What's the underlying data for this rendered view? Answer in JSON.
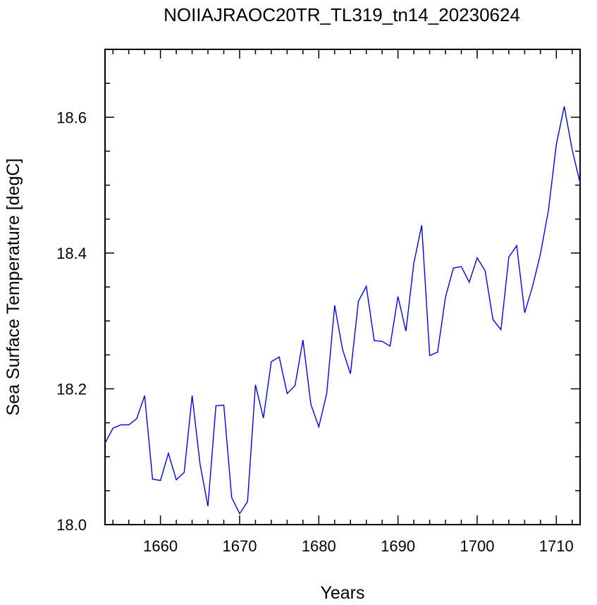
{
  "chart_data": {
    "type": "line",
    "title": "NOIIAJRAOC20TR_TL319_tn14_20230624",
    "xlabel": "Years",
    "ylabel": "Sea Surface Temperature [degC]",
    "xlim": [
      1653,
      1713
    ],
    "ylim": [
      18.0,
      18.7
    ],
    "x_ticks": [
      1660,
      1670,
      1680,
      1690,
      1700,
      1710
    ],
    "y_ticks": [
      18.0,
      18.2,
      18.4,
      18.6
    ],
    "x_tick_labels": [
      "1660",
      "1670",
      "1680",
      "1690",
      "1700",
      "1710"
    ],
    "y_tick_labels": [
      "18.0",
      "18.2",
      "18.4",
      "18.6"
    ],
    "grid": false,
    "line_color": "#0000ff",
    "series": [
      {
        "x": [
          1653,
          1654,
          1655,
          1656,
          1657,
          1658,
          1659,
          1660,
          1661,
          1662,
          1663,
          1664,
          1665,
          1666,
          1667,
          1668,
          1669,
          1670,
          1671,
          1672,
          1673,
          1674,
          1675,
          1676,
          1677,
          1678,
          1679,
          1680,
          1681,
          1682,
          1683,
          1684,
          1685,
          1686,
          1687,
          1688,
          1689,
          1690,
          1691,
          1692,
          1693,
          1694,
          1695,
          1696,
          1697,
          1698,
          1699,
          1700,
          1701,
          1702,
          1703,
          1704,
          1705,
          1706,
          1707,
          1708,
          1709,
          1710,
          1711,
          1712,
          1713
        ],
        "values": [
          18.12,
          18.142,
          18.147,
          18.147,
          18.156,
          18.19,
          18.067,
          18.065,
          18.105,
          18.066,
          18.077,
          18.19,
          18.089,
          18.027,
          18.175,
          18.176,
          18.04,
          18.016,
          18.034,
          18.206,
          18.157,
          18.24,
          18.247,
          18.193,
          18.205,
          18.272,
          18.177,
          18.144,
          18.193,
          18.323,
          18.258,
          18.222,
          18.329,
          18.351,
          18.271,
          18.27,
          18.263,
          18.336,
          18.285,
          18.385,
          18.441,
          18.249,
          18.254,
          18.335,
          18.378,
          18.38,
          18.357,
          18.393,
          18.374,
          18.302,
          18.287,
          18.394,
          18.411,
          18.312,
          18.351,
          18.399,
          18.463,
          18.56,
          18.616,
          18.552,
          18.503
        ]
      }
    ]
  }
}
